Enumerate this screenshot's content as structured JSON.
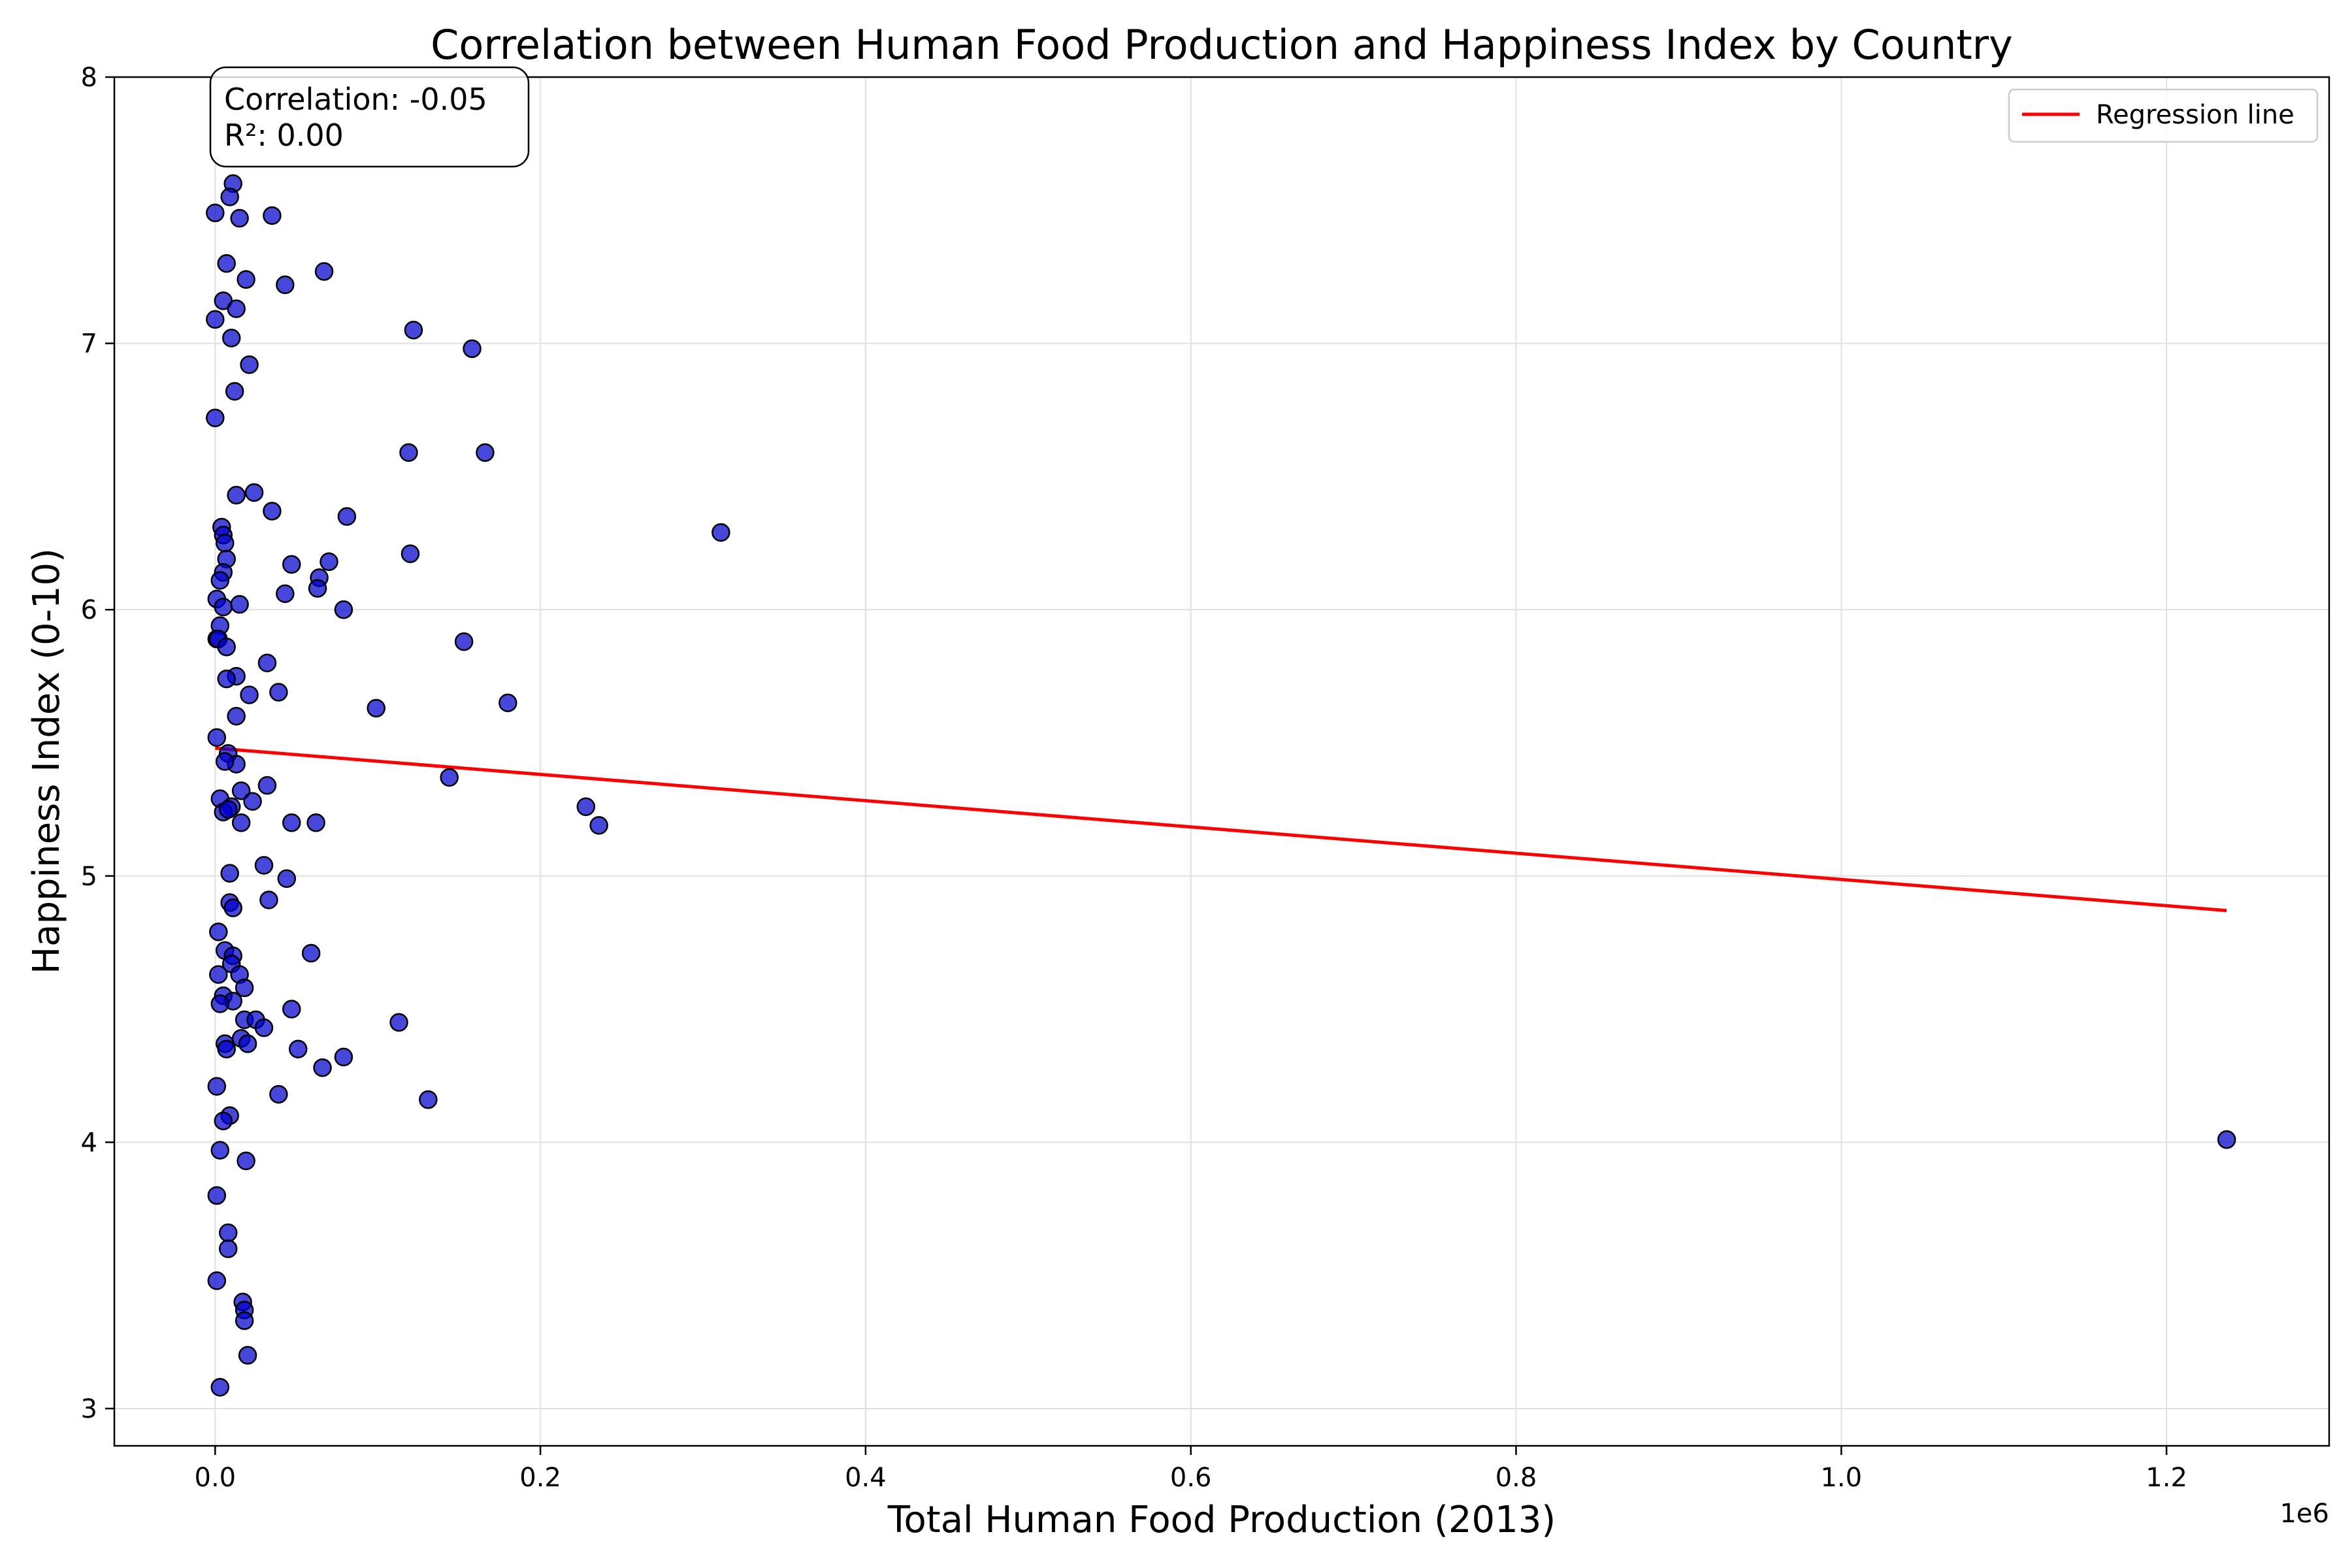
{
  "chart_data": {
    "type": "scatter",
    "title": "Correlation between Human Food Production and Happiness Index by Country",
    "xlabel": "Total Human Food Production (2013)",
    "ylabel": "Happiness Index (0-10)",
    "x_offset_label": "1e6",
    "x_scale_factor": 1000000,
    "xlim": [
      -0.062,
      1.3
    ],
    "ylim": [
      2.86,
      8.0
    ],
    "x_ticks": [
      0.0,
      0.2,
      0.4,
      0.6,
      0.8,
      1.0,
      1.2
    ],
    "x_tick_labels": [
      "0.0",
      "0.2",
      "0.4",
      "0.6",
      "0.8",
      "1.0",
      "1.2"
    ],
    "y_ticks": [
      3,
      4,
      5,
      6,
      7,
      8
    ],
    "y_tick_labels": [
      "3",
      "4",
      "5",
      "6",
      "7",
      "8"
    ],
    "grid": true,
    "legend": {
      "placement": "top-right",
      "entries": [
        "Regression line"
      ]
    },
    "annotation": {
      "lines": [
        "Correlation: -0.05",
        "R²: 0.00"
      ],
      "placement": "top-left"
    },
    "colors": {
      "points": "#0000cc",
      "point_edge": "#000000",
      "regression": "#ff0000",
      "grid": "#e0e0e0"
    },
    "series": [
      {
        "type": "scatter",
        "x": [
          0.011,
          0.009,
          0.0,
          0.035,
          0.015,
          0.007,
          0.019,
          0.067,
          0.043,
          0.005,
          0.013,
          0.0,
          0.01,
          0.122,
          0.158,
          0.021,
          0.012,
          0.0,
          0.119,
          0.166,
          0.013,
          0.024,
          0.035,
          0.004,
          0.081,
          0.005,
          0.006,
          0.311,
          0.007,
          0.12,
          0.005,
          0.047,
          0.07,
          0.064,
          0.063,
          0.003,
          0.043,
          0.001,
          0.005,
          0.015,
          0.079,
          0.003,
          0.001,
          0.002,
          0.007,
          0.153,
          0.032,
          0.013,
          0.007,
          0.039,
          0.021,
          0.099,
          0.18,
          0.013,
          0.001,
          0.008,
          0.013,
          0.006,
          0.144,
          0.003,
          0.016,
          0.032,
          0.023,
          0.01,
          0.228,
          0.005,
          0.008,
          0.016,
          0.236,
          0.047,
          0.062,
          0.009,
          0.03,
          0.044,
          0.033,
          0.009,
          0.011,
          0.002,
          0.059,
          0.006,
          0.011,
          0.01,
          0.015,
          0.002,
          0.018,
          0.005,
          0.011,
          0.003,
          0.047,
          0.018,
          0.025,
          0.113,
          0.03,
          0.016,
          0.006,
          0.02,
          0.051,
          0.079,
          0.007,
          0.066,
          0.001,
          0.039,
          0.131,
          0.009,
          0.005,
          0.003,
          0.019,
          1.237,
          0.001,
          0.008,
          0.008,
          0.001,
          0.017,
          0.018,
          0.018,
          0.02,
          0.003
        ],
        "y": [
          7.6,
          7.55,
          7.49,
          7.48,
          7.47,
          7.3,
          7.24,
          7.27,
          7.22,
          7.16,
          7.13,
          7.09,
          7.02,
          7.05,
          6.98,
          6.92,
          6.82,
          6.72,
          6.59,
          6.59,
          6.43,
          6.44,
          6.37,
          6.31,
          6.35,
          6.28,
          6.25,
          6.29,
          6.19,
          6.21,
          6.14,
          6.17,
          6.18,
          6.12,
          6.08,
          6.11,
          6.06,
          6.04,
          6.01,
          6.02,
          6.0,
          5.94,
          5.89,
          5.89,
          5.86,
          5.88,
          5.8,
          5.75,
          5.74,
          5.69,
          5.68,
          5.63,
          5.65,
          5.6,
          5.52,
          5.46,
          5.42,
          5.43,
          5.37,
          5.29,
          5.32,
          5.34,
          5.28,
          5.26,
          5.26,
          5.24,
          5.25,
          5.2,
          5.19,
          5.2,
          5.2,
          5.01,
          5.04,
          4.99,
          4.91,
          4.9,
          4.88,
          4.79,
          4.71,
          4.72,
          4.7,
          4.67,
          4.63,
          4.63,
          4.58,
          4.55,
          4.53,
          4.52,
          4.5,
          4.46,
          4.46,
          4.45,
          4.43,
          4.39,
          4.37,
          4.37,
          4.35,
          4.32,
          4.35,
          4.28,
          4.21,
          4.18,
          4.16,
          4.1,
          4.08,
          3.97,
          3.93,
          4.01,
          3.8,
          3.66,
          3.6,
          3.48,
          3.4,
          3.37,
          3.33,
          3.2,
          3.08
        ]
      },
      {
        "type": "line",
        "name": "Regression line",
        "x": [
          0.0,
          1.237
        ],
        "y": [
          5.48,
          4.87
        ]
      }
    ]
  }
}
